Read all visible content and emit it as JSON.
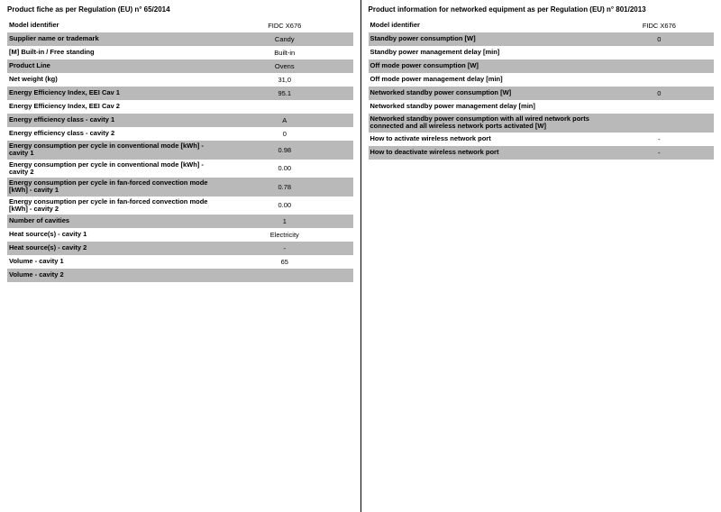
{
  "left": {
    "heading": "Product fiche as per Regulation (EU) n° 65/2014",
    "rows": [
      {
        "label": "Model identifier",
        "value": "FIDC X676",
        "shade": false
      },
      {
        "label": "Supplier name or trademark",
        "value": "Candy",
        "shade": true
      },
      {
        "label": "[M] Built-in / Free standing",
        "value": "Built-in",
        "shade": false
      },
      {
        "label": "Product Line",
        "value": "Ovens",
        "shade": true
      },
      {
        "label": "Net weight (kg)",
        "value": "31,0",
        "shade": false
      },
      {
        "label": "Energy Efficiency Index, EEI Cav 1",
        "value": "95.1",
        "shade": true
      },
      {
        "label": "Energy Efficiency Index, EEI Cav 2",
        "value": "",
        "shade": false
      },
      {
        "label": "Energy efficiency class - cavity 1",
        "value": "A",
        "shade": true
      },
      {
        "label": "Energy efficiency class - cavity 2",
        "value": "0",
        "shade": false
      },
      {
        "label": "Energy consumption per cycle in conventional mode [kWh] - cavity 1",
        "value": "0.98",
        "shade": true
      },
      {
        "label": "Energy consumption per cycle in conventional mode [kWh] - cavity 2",
        "value": "0.00",
        "shade": false
      },
      {
        "label": "Energy consumption per cycle in fan-forced convection mode  [kWh] - cavity 1",
        "value": "0.78",
        "shade": true
      },
      {
        "label": "Energy consumption per cycle in fan-forced convection mode  [kWh] - cavity 2",
        "value": "0.00",
        "shade": false
      },
      {
        "label": "Number of cavities",
        "value": "1",
        "shade": true
      },
      {
        "label": "Heat source(s) - cavity 1",
        "value": "Electricity",
        "shade": false
      },
      {
        "label": "Heat source(s) - cavity 2",
        "value": "-",
        "shade": true
      },
      {
        "label": "Volume - cavity 1",
        "value": "65",
        "shade": false
      },
      {
        "label": "Volume - cavity 2",
        "value": "",
        "shade": true
      }
    ]
  },
  "right": {
    "heading": "Product information for networked equipment as per Regulation (EU) n° 801/2013",
    "rows": [
      {
        "label": "Model identifier",
        "value": "FIDC X676",
        "shade": false
      },
      {
        "label": "Standby power consumption [W]",
        "value": "0",
        "shade": true
      },
      {
        "label": "Standby power management delay [min]",
        "value": "",
        "shade": false
      },
      {
        "label": "Off mode power consumption [W]",
        "value": "",
        "shade": true
      },
      {
        "label": "Off mode power management delay [min]",
        "value": "",
        "shade": false
      },
      {
        "label": "Networked standby power consumption [W]",
        "value": "0",
        "shade": true
      },
      {
        "label": "Networked standby power management delay [min]",
        "value": "",
        "shade": false
      },
      {
        "label": "Networked standby power consumption with all wired network ports connected and all wireless network ports activated [W]",
        "value": "",
        "shade": true
      },
      {
        "label": "How to activate wireless network port",
        "value": "-",
        "shade": false
      },
      {
        "label": "How to deactivate wireless network port",
        "value": "-",
        "shade": true
      }
    ]
  }
}
